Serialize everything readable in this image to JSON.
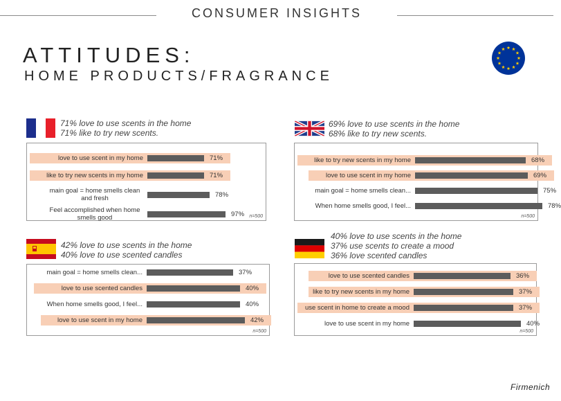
{
  "header": {
    "title": "CONSUMER INSIGHTS"
  },
  "title": {
    "line1": "ATTITUDES:",
    "line2": "HOME PRODUCTS/FRAGRANCE"
  },
  "brand": "Firmenich",
  "colors": {
    "bar": "#5c5c5c",
    "highlight": "#f8cfb6",
    "eu_blue": "#003399",
    "eu_star": "#ffcc00"
  },
  "chart_data": [
    {
      "type": "bar",
      "orientation": "horizontal",
      "country": "France",
      "summary": [
        "71% love to use scents in the home",
        "71% like to try new scents."
      ],
      "categories": [
        "love to use scent in my home",
        "like to try new scents in my home",
        "main goal = home smells clean and fresh",
        "Feel accomplished when home smells good"
      ],
      "values": [
        71,
        71,
        78,
        97
      ],
      "value_labels": [
        "71%",
        "71%",
        "78%",
        "97%"
      ],
      "highlighted": [
        true,
        true,
        false,
        false
      ],
      "sample": "n=500",
      "xlim": [
        0,
        100
      ]
    },
    {
      "type": "bar",
      "orientation": "horizontal",
      "country": "United Kingdom",
      "summary": [
        "69% love to use scents in the home",
        "68% like to try new scents."
      ],
      "categories": [
        "like to try new scents in my home",
        "love to use scent in my home",
        "main goal = home smells clean...",
        "When home smells good, I feel..."
      ],
      "values": [
        68,
        69,
        75,
        78
      ],
      "value_labels": [
        "68%",
        "69%",
        "75%",
        "78%"
      ],
      "highlighted": [
        true,
        true,
        false,
        false
      ],
      "sample": "n=500",
      "xlim": [
        0,
        100
      ]
    },
    {
      "type": "bar",
      "orientation": "horizontal",
      "country": "Spain",
      "summary": [
        "42% love to use scents in the home",
        "40% love to use scented candles"
      ],
      "categories": [
        "main goal = home smells clean...",
        "love to use scented candles",
        "When home smells good, I feel...",
        "love to use scent in my home"
      ],
      "values": [
        37,
        40,
        40,
        42
      ],
      "value_labels": [
        "37%",
        "40%",
        "40%",
        "42%"
      ],
      "highlighted": [
        false,
        true,
        false,
        true
      ],
      "sample": "n=500",
      "xlim": [
        0,
        50
      ]
    },
    {
      "type": "bar",
      "orientation": "horizontal",
      "country": "Germany",
      "summary": [
        "40% love to use scents in the home",
        "37% use scents to create a mood",
        "36%  love scented candles"
      ],
      "categories": [
        "love to use scented candles",
        "like to try new scents in my home",
        "use scent in home to create a mood",
        "love to use scent in my home"
      ],
      "values": [
        36,
        37,
        37,
        40
      ],
      "value_labels": [
        "36%",
        "37%",
        "37%",
        "40%"
      ],
      "highlighted": [
        true,
        true,
        true,
        false
      ],
      "sample": "n=500",
      "xlim": [
        0,
        50
      ]
    }
  ]
}
